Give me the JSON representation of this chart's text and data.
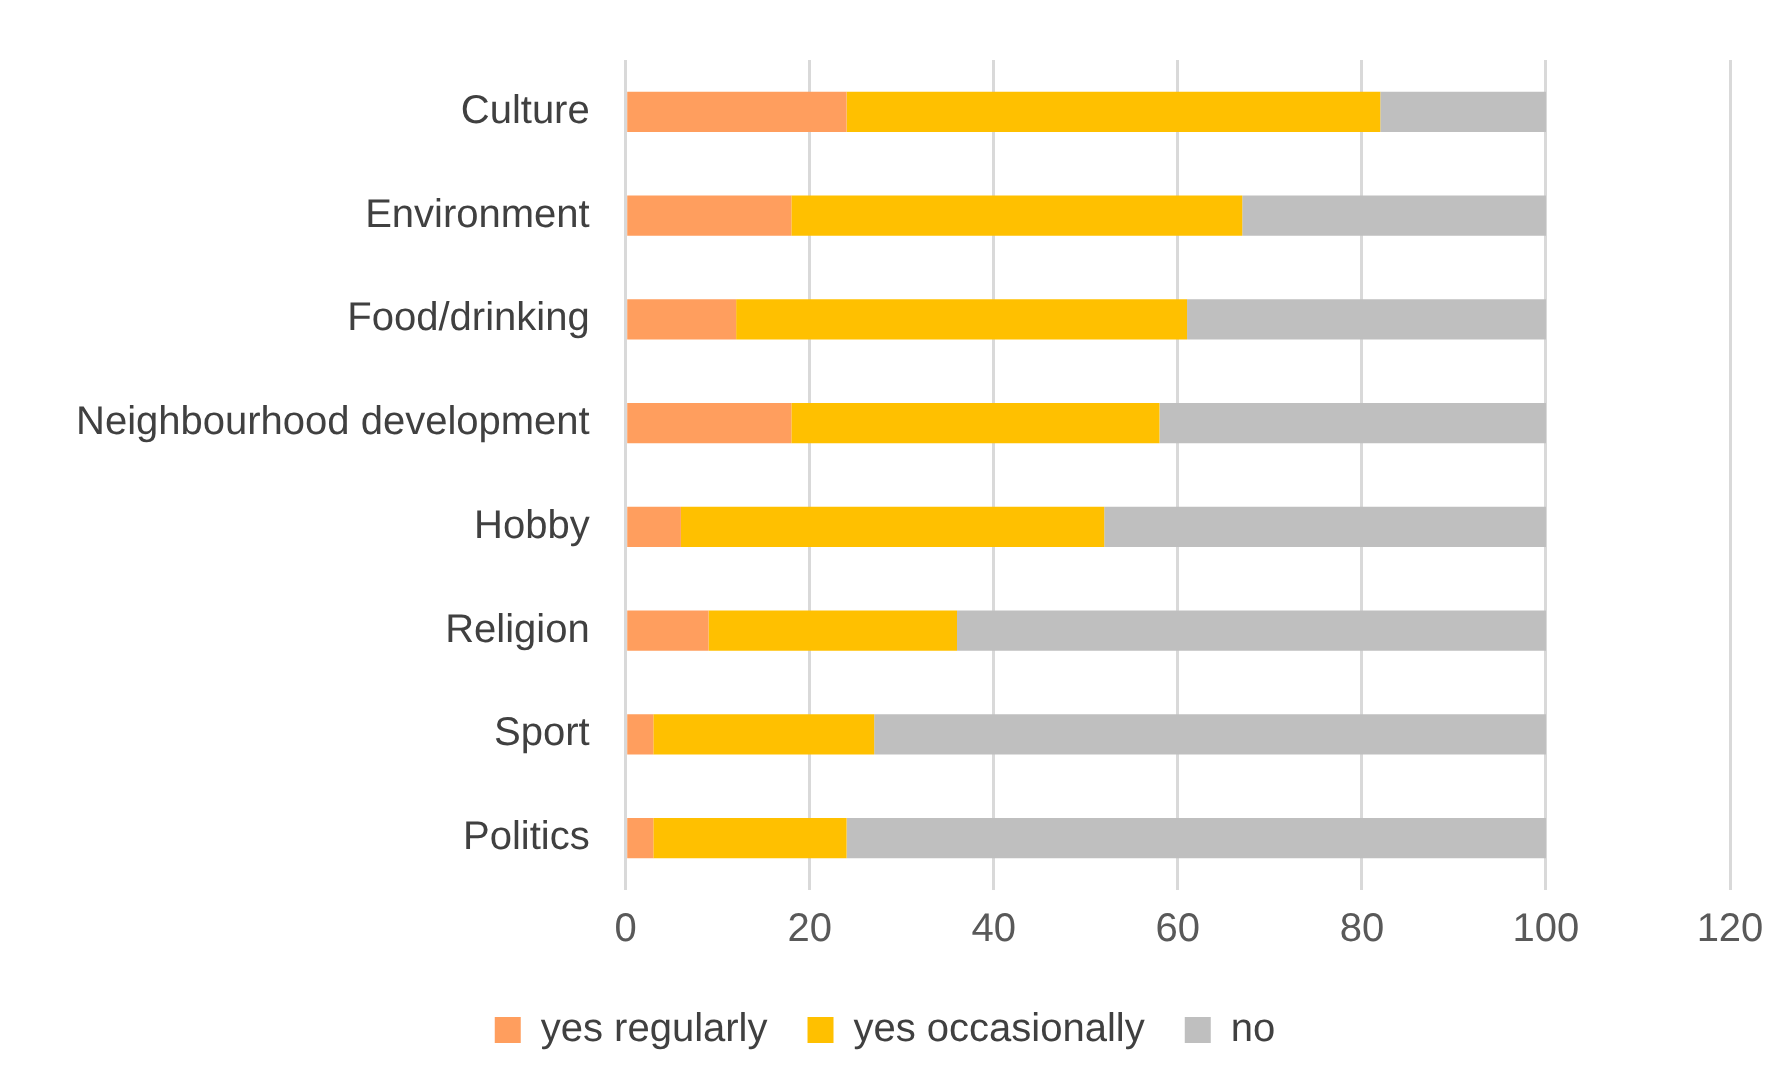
{
  "chart_data": {
    "type": "bar",
    "orientation": "horizontal",
    "stacked": true,
    "categories": [
      "Culture",
      "Environment",
      "Food/drinking",
      "Neighbourhood development",
      "Hobby",
      "Religion",
      "Sport",
      "Politics"
    ],
    "series": [
      {
        "name": "yes regularly",
        "color": "#ff9e5e",
        "values": [
          24,
          18,
          12,
          18,
          6,
          9,
          3,
          3
        ]
      },
      {
        "name": "yes occasionally",
        "color": "#ffc000",
        "values": [
          58,
          49,
          49,
          40,
          46,
          27,
          24,
          21
        ]
      },
      {
        "name": "no",
        "color": "#bfbfbf",
        "values": [
          18,
          33,
          39,
          42,
          48,
          64,
          73,
          76
        ]
      }
    ],
    "xlim": [
      0,
      120
    ],
    "xticks": [
      0,
      20,
      40,
      60,
      80,
      100,
      120
    ],
    "grid": "x",
    "legend": "bottom"
  }
}
